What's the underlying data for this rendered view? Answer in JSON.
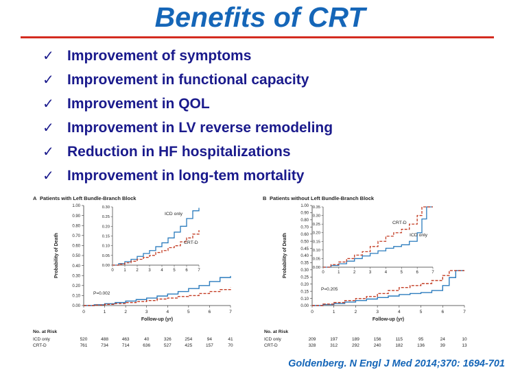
{
  "slide": {
    "title": "Benefits of CRT",
    "bullets": [
      "Improvement of symptoms",
      "Improvement in functional capacity",
      "Improvement  in QOL",
      "Improvement in LV reverse remodeling",
      "Reduction in HF hospitalizations",
      "Improvement in long-tem mortality"
    ],
    "check_icon": "check-mark",
    "citation": "Goldenberg. N Engl J Med 2014;370: 1694-701",
    "colors": {
      "title": "#1566b8",
      "rule": "#d42c20",
      "bullets": "#1a1a8c",
      "icd": "#2a7bbd",
      "crt": "#c23b22"
    }
  },
  "chart_data": [
    {
      "type": "line",
      "panel_label": "A",
      "title": "Patients with Left Bundle-Branch Block",
      "xlabel": "Follow-up (yr)",
      "ylabel": "Probability of Death",
      "xlim": [
        0,
        7
      ],
      "ylim": [
        0,
        1.0
      ],
      "xticks": [
        0,
        1,
        2,
        3,
        4,
        5,
        6,
        7
      ],
      "yticks": [
        "0.00",
        "0.10",
        "0.20",
        "0.30",
        "0.40",
        "0.50",
        "0.60",
        "0.70",
        "0.80",
        "0.90",
        "1.00"
      ],
      "p_value": "P=0.002",
      "series": [
        {
          "name": "ICD only",
          "x": [
            0,
            0.5,
            1,
            1.5,
            2,
            2.5,
            3,
            3.5,
            4,
            4.5,
            5,
            5.5,
            6,
            6.5,
            7
          ],
          "y": [
            0,
            0.008,
            0.018,
            0.03,
            0.045,
            0.06,
            0.075,
            0.095,
            0.115,
            0.14,
            0.17,
            0.2,
            0.24,
            0.28,
            0.295
          ]
        },
        {
          "name": "CRT-D",
          "x": [
            0,
            0.5,
            1,
            1.5,
            2,
            2.5,
            3,
            3.5,
            4,
            4.5,
            5,
            5.5,
            6,
            6.5,
            7
          ],
          "y": [
            0,
            0.005,
            0.012,
            0.02,
            0.03,
            0.04,
            0.05,
            0.065,
            0.075,
            0.09,
            0.1,
            0.12,
            0.14,
            0.16,
            0.18
          ]
        }
      ],
      "inset": {
        "xlim": [
          0,
          7
        ],
        "ylim": [
          0,
          0.3
        ],
        "xticks": [
          0,
          1,
          2,
          3,
          4,
          5,
          6,
          7
        ],
        "yticks": [
          "0.00",
          "0.05",
          "0.10",
          "0.15",
          "0.20",
          "0.25",
          "0.30"
        ],
        "labels": [
          "ICD only",
          "CRT-D"
        ]
      },
      "at_risk": {
        "title": "No. at Risk",
        "rows": [
          {
            "name": "ICD only",
            "values": [
              "520",
              "488",
              "463",
              "40",
              "326",
              "254",
              "94",
              "41"
            ]
          },
          {
            "name": "CRT-D",
            "values": [
              "761",
              "734",
              "714",
              "636",
              "527",
              "425",
              "157",
              "70"
            ]
          }
        ]
      }
    },
    {
      "type": "line",
      "panel_label": "B",
      "title": "Patients without Left Bundle-Branch Block",
      "xlabel": "Follow-up (yr)",
      "ylabel": "Probability of Death",
      "xlim": [
        0,
        7
      ],
      "ylim": [
        0,
        1.0
      ],
      "xticks": [
        0,
        1,
        2,
        3,
        4,
        5,
        6,
        7
      ],
      "yticks": [
        "0.00",
        "0.10",
        "0.15",
        "0.20",
        "0.25",
        "0.30",
        "0.35",
        "0.40",
        "0.45",
        "0.50",
        "0.60",
        "0.70",
        "0.80",
        "0.90",
        "1.00"
      ],
      "p_value": "P=0.205",
      "series": [
        {
          "name": "ICD only",
          "x": [
            0,
            0.5,
            1,
            1.5,
            2,
            2.5,
            3,
            3.5,
            4,
            4.5,
            5,
            5.5,
            6,
            6.3,
            6.6,
            7
          ],
          "y": [
            0,
            0.01,
            0.02,
            0.035,
            0.05,
            0.065,
            0.08,
            0.095,
            0.11,
            0.12,
            0.13,
            0.15,
            0.2,
            0.28,
            0.35,
            0.35
          ]
        },
        {
          "name": "CRT-D",
          "x": [
            0,
            0.5,
            1,
            1.5,
            2,
            2.5,
            3,
            3.5,
            4,
            4.5,
            5,
            5.5,
            6,
            6.3,
            6.6,
            7
          ],
          "y": [
            0,
            0.015,
            0.03,
            0.05,
            0.07,
            0.09,
            0.12,
            0.15,
            0.18,
            0.2,
            0.22,
            0.25,
            0.3,
            0.35,
            0.35,
            0.35
          ]
        }
      ],
      "inset": {
        "xlim": [
          0,
          7
        ],
        "ylim": [
          0,
          0.35
        ],
        "xticks": [
          0,
          1,
          2,
          3,
          4,
          5,
          6,
          7
        ],
        "yticks": [
          "0.00",
          "0.05",
          "0.10",
          "0.15",
          "0.20",
          "0.25",
          "0.30",
          "0.35"
        ],
        "labels": [
          "CRT-D",
          "ICD only"
        ]
      },
      "at_risk": {
        "title": "No. at Risk",
        "rows": [
          {
            "name": "ICD only",
            "values": [
              "209",
              "197",
              "189",
              "156",
              "115",
              "95",
              "24",
              "10"
            ]
          },
          {
            "name": "CRT-D",
            "values": [
              "328",
              "312",
              "292",
              "240",
              "182",
              "136",
              "39",
              "13"
            ]
          }
        ]
      }
    }
  ]
}
